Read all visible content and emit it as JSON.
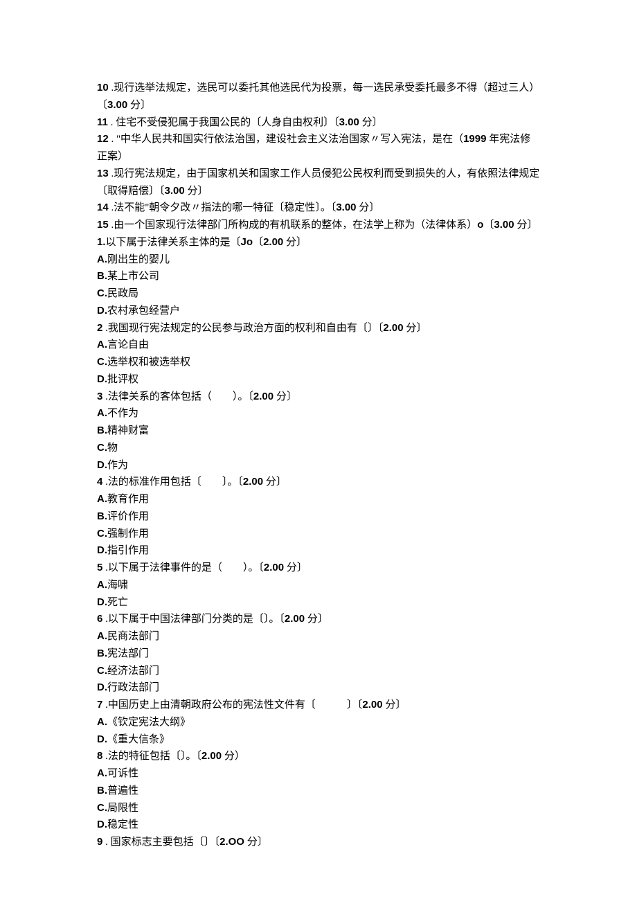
{
  "fill": [
    {
      "n": "10",
      "text": " .现行选举法规定，选民可以委托其他选民代为投票，每一选民承受委托最多不得（超过三人）〔",
      "pts": "3.00",
      "after": " 分〕"
    },
    {
      "n": "11",
      "text": " . 住宅不受侵犯属于我国公民的〔人身自由权利〕〔",
      "pts": "3.00",
      "after": " 分〕"
    },
    {
      "n": "12",
      "text": " . \"中华人民共和国实行依法治国，建设社会主义法治国家〃写入宪法，是在（",
      "ans": "1999",
      "ans_after": " 年宪法修正案）"
    },
    {
      "n": "13",
      "text": " .现行宪法规定，由于国家机关和国家工作人员侵犯公民权利而受到损失的人，有依照法律规定〔取得赔偿〕〔",
      "pts": "3.00",
      "after": " 分〕"
    },
    {
      "n": "14",
      "text": " .法不能\"朝令夕改〃指法的哪一特征〔稳定性〕。〔",
      "pts": "3.00",
      "after": " 分〕"
    },
    {
      "n": "15",
      "text": " .由一个国家现行法律部门所构成的有机联系的整体，在法学上称为（法律体系）",
      "o": "o",
      "ob": "〔",
      "pts": "3.00",
      "after": " 分〕"
    }
  ],
  "mc": [
    {
      "n": "1.",
      "stem": "以下属于法律关系主体的是〔",
      "mid": "Jo",
      "mid2": "〔",
      "pts": "2.00",
      "after": " 分〕",
      "opts": [
        {
          "L": "A.",
          "t": "刚出生的婴儿"
        },
        {
          "L": "B.",
          "t": "某上市公司"
        },
        {
          "L": "C.",
          "t": "民政局"
        },
        {
          "L": "D.",
          "t": "农村承包经营户"
        }
      ]
    },
    {
      "n": "2",
      "stem": " .我国现行宪法规定的公民参与政治方面的权利和自由有〔〕〔",
      "pts": "2.00",
      "after": " 分〕",
      "opts": [
        {
          "L": "A.",
          "t": "言论自由"
        },
        {
          "L": "C.",
          "t": "选举权和被选举权"
        },
        {
          "L": "D.",
          "t": "批评权"
        }
      ]
    },
    {
      "n": "3",
      "stem": " .法律关系的客体包括（　　）。〔",
      "pts": "2.00",
      "after": " 分〕",
      "opts": [
        {
          "L": "A.",
          "t": "不作为"
        },
        {
          "L": "B.",
          "t": "精神财富"
        },
        {
          "L": "C.",
          "t": "物"
        },
        {
          "L": "D.",
          "t": "作为"
        }
      ]
    },
    {
      "n": "4",
      "stem": " .法的标准作用包括〔　　〕。〔",
      "pts": "2.00",
      "after": " 分〕",
      "opts": [
        {
          "L": "A.",
          "t": "教育作用"
        },
        {
          "L": "B.",
          "t": "评价作用"
        },
        {
          "L": "C.",
          "t": "强制作用"
        },
        {
          "L": "D.",
          "t": "指引作用"
        }
      ]
    },
    {
      "n": "5",
      "stem": " .以下属于法律事件的是（　　）。〔",
      "pts": "2.00",
      "after": " 分〕",
      "opts": [
        {
          "L": "A.",
          "t": "海啸"
        },
        {
          "L": "D.",
          "t": "死亡"
        }
      ]
    },
    {
      "n": "6",
      "stem": " .以下属于中国法律部门分类的是〔〕。〔",
      "pts": "2.00",
      "after": " 分〕",
      "opts": [
        {
          "L": "A.",
          "t": "民商法部门"
        },
        {
          "L": "B.",
          "t": "宪法部门"
        },
        {
          "L": "C.",
          "t": "经济法部门"
        },
        {
          "L": "D.",
          "t": "行政法部门"
        }
      ]
    },
    {
      "n": "7",
      "stem": " .中国历史上由清朝政府公布的宪法性文件有〔　　　〕〔",
      "pts": "2.00",
      "after": " 分〕",
      "opts": [
        {
          "L": "A.",
          "t": "《钦定宪法大纲》"
        },
        {
          "L": "D.",
          "t": "《重大信条》"
        }
      ]
    },
    {
      "n": "8",
      "stem": " .法的特征包括〔〕。〔",
      "pts": "2.00",
      "after": " 分）",
      "opts": [
        {
          "L": "A.",
          "t": "可诉性"
        },
        {
          "L": "B.",
          "t": "普遍性"
        },
        {
          "L": "C.",
          "t": "局限性"
        },
        {
          "L": "D.",
          "t": "稳定性"
        }
      ]
    },
    {
      "n": "9",
      "stem": " . 国家标志主要包括〔〕〔",
      "pts": "2.OO",
      "after": " 分〕",
      "opts": []
    }
  ]
}
